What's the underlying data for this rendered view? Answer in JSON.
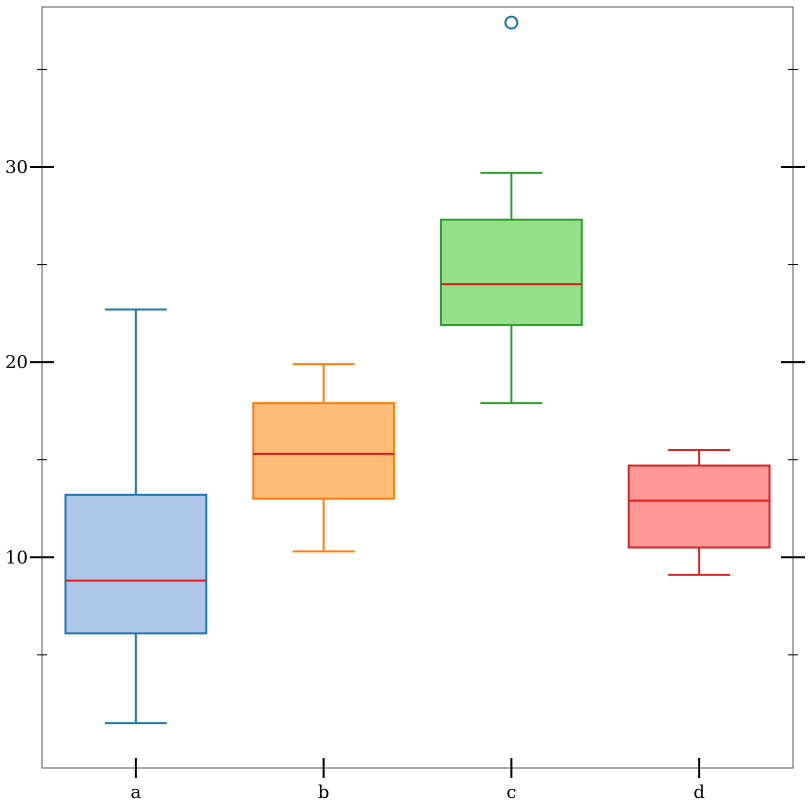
{
  "chart_data": {
    "type": "box",
    "title": "",
    "xlabel": "",
    "ylabel": "",
    "categories": [
      "a",
      "b",
      "c",
      "d"
    ],
    "ylim": [
      -0.8,
      38.2
    ],
    "yticks_major": [
      10,
      20,
      30
    ],
    "yticks_major_labels": [
      "10",
      "20",
      "30"
    ],
    "yticks_minor": [
      5,
      15,
      25,
      35
    ],
    "grid": false,
    "legend": "none",
    "median_color": "#e31a1c",
    "boxes": [
      {
        "label": "a",
        "whisker_low": 1.5,
        "q1": 6.1,
        "median": 8.8,
        "q3": 13.2,
        "whisker_high": 22.7,
        "outliers": [],
        "fill": "#aec7e8",
        "stroke": "#1f77b4"
      },
      {
        "label": "b",
        "whisker_low": 10.3,
        "q1": 13.0,
        "median": 15.3,
        "q3": 17.9,
        "whisker_high": 19.9,
        "outliers": [],
        "fill": "#ffbb78",
        "stroke": "#ff7f0e"
      },
      {
        "label": "c",
        "whisker_low": 17.9,
        "q1": 21.9,
        "median": 24.0,
        "q3": 27.3,
        "whisker_high": 29.7,
        "outliers": [
          37.4
        ],
        "fill": "#98df8a",
        "stroke": "#2ca02c"
      },
      {
        "label": "d",
        "whisker_low": 9.1,
        "q1": 10.5,
        "median": 12.9,
        "q3": 14.7,
        "whisker_high": 15.5,
        "outliers": [],
        "fill": "#ff9896",
        "stroke": "#d62728"
      }
    ],
    "outlier_color": "#1f77b4"
  }
}
